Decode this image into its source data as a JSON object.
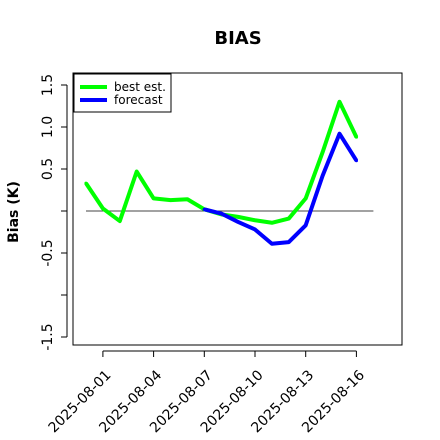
{
  "chart_data": {
    "type": "line",
    "title": "BIAS",
    "xlabel": "",
    "ylabel": "Bias (K)",
    "ylim": [
      -1.6,
      1.6
    ],
    "yticks": [
      -1.5,
      -1.0,
      -0.5,
      0.0,
      0.5,
      1.0,
      1.5
    ],
    "ytick_labels": [
      "-1.5",
      "",
      "-0.5",
      "",
      "0.5",
      "1.0",
      "1.5"
    ],
    "x": [
      "2025-07-31",
      "2025-08-01",
      "2025-08-02",
      "2025-08-03",
      "2025-08-04",
      "2025-08-05",
      "2025-08-06",
      "2025-08-07",
      "2025-08-08",
      "2025-08-09",
      "2025-08-10",
      "2025-08-11",
      "2025-08-12",
      "2025-08-13",
      "2025-08-14",
      "2025-08-15",
      "2025-08-16"
    ],
    "xticks": [
      "2025-08-01",
      "2025-08-04",
      "2025-08-07",
      "2025-08-10",
      "2025-08-13",
      "2025-08-16"
    ],
    "highlight_tick": "2025-08-07",
    "highlight_color": "#228b22",
    "reference_line": 0,
    "legend_position": "top-left",
    "series": [
      {
        "name": "best est.",
        "color": "#00ff00",
        "values": [
          0.33,
          0.03,
          -0.12,
          0.47,
          0.15,
          0.13,
          0.14,
          0.02,
          -0.04,
          -0.07,
          -0.11,
          -0.14,
          -0.09,
          0.15,
          0.7,
          1.3,
          0.88
        ]
      },
      {
        "name": "forecast",
        "color": "#0000ff",
        "values": [
          null,
          null,
          null,
          null,
          null,
          null,
          null,
          0.02,
          -0.03,
          -0.13,
          -0.22,
          -0.39,
          -0.37,
          -0.17,
          0.42,
          0.92,
          0.6
        ]
      }
    ]
  }
}
